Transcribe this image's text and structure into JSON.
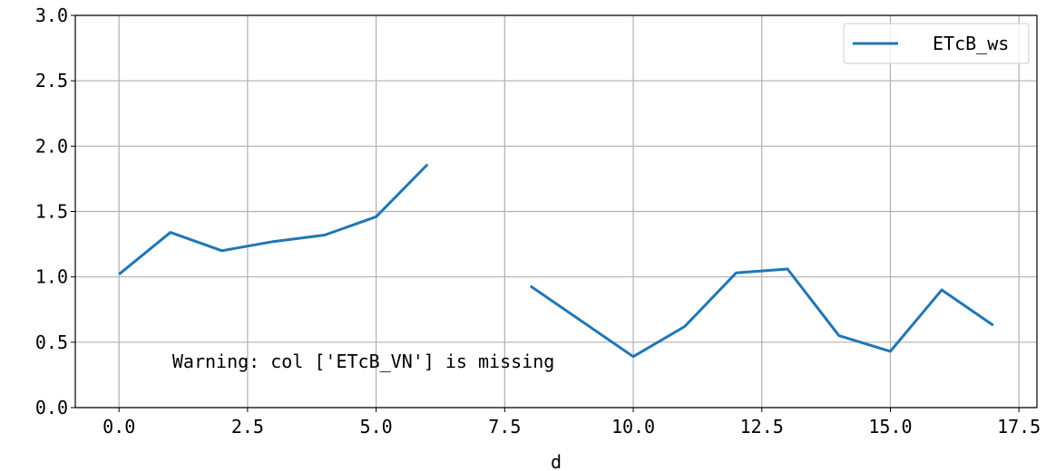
{
  "chart_data": {
    "type": "line",
    "xlabel": "d",
    "ylabel": "",
    "title": "",
    "xlim": [
      -0.85,
      17.85
    ],
    "ylim": [
      0.0,
      3.0
    ],
    "xticks": [
      0.0,
      2.5,
      5.0,
      7.5,
      10.0,
      12.5,
      15.0,
      17.5
    ],
    "xtick_labels": [
      "0.0",
      "2.5",
      "5.0",
      "7.5",
      "10.0",
      "12.5",
      "15.0",
      "17.5"
    ],
    "yticks": [
      0.0,
      0.5,
      1.0,
      1.5,
      2.0,
      2.5,
      3.0
    ],
    "ytick_labels": [
      "0.0",
      "0.5",
      "1.0",
      "1.5",
      "2.0",
      "2.5",
      "3.0"
    ],
    "grid": true,
    "legend_position": "top-right",
    "series": [
      {
        "name": "ETcB_ws",
        "color": "#1f77b4",
        "x": [
          0,
          1,
          2,
          3,
          4,
          5,
          6,
          7,
          8,
          9,
          10,
          11,
          12,
          13,
          14,
          15,
          16,
          17
        ],
        "y": [
          1.02,
          1.34,
          1.2,
          1.27,
          1.32,
          1.46,
          1.86,
          null,
          0.93,
          0.66,
          0.39,
          0.62,
          1.03,
          1.06,
          0.55,
          0.43,
          0.9,
          0.63
        ]
      }
    ],
    "annotations": [
      {
        "text": "Warning: col ['ETcB_VN'] is missing",
        "x": 1.0,
        "y": 0.34
      }
    ]
  }
}
